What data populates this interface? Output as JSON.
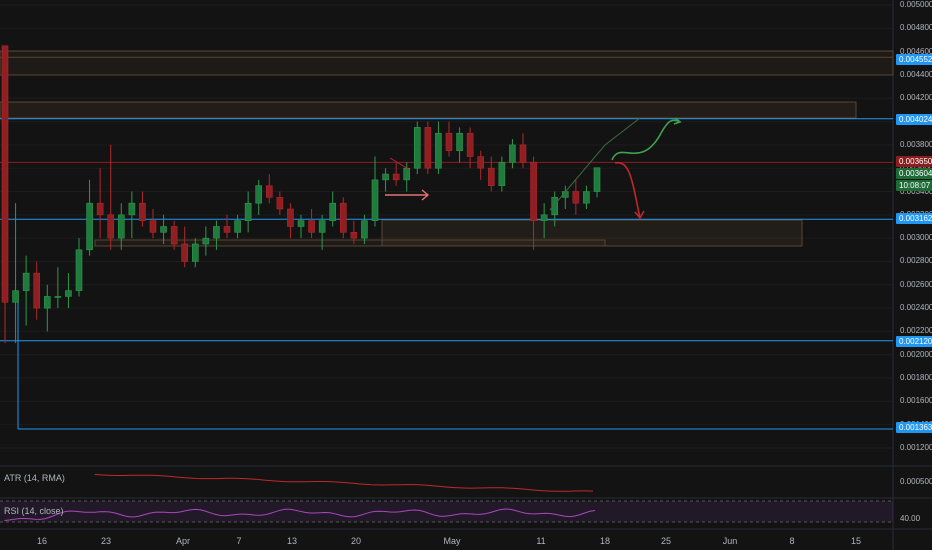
{
  "chart": {
    "symbol_hint": "",
    "price_axis": {
      "ticks": [
        "0.005000",
        "0.004800",
        "0.004600",
        "0.004400",
        "0.004200",
        "0.004000",
        "0.003800",
        "0.003600",
        "0.003400",
        "0.003200",
        "0.003000",
        "0.002800",
        "0.002600",
        "0.002400",
        "0.002200",
        "0.002000",
        "0.001800",
        "0.001600",
        "0.001400",
        "0.001200"
      ]
    },
    "price_tags": [
      {
        "value": "0.004552",
        "color": "#2196f3"
      },
      {
        "value": "0.004024",
        "color": "#2196f3"
      },
      {
        "value": "0.003650",
        "color": "#8a1e1e"
      },
      {
        "value": "0.003604",
        "color": "#1e6a36"
      },
      {
        "value": "10:08:07",
        "color": "#1e6a36"
      },
      {
        "value": "0.003162",
        "color": "#2196f3"
      },
      {
        "value": "0.002120",
        "color": "#2196f3"
      },
      {
        "value": "0.001363",
        "color": "#2196f3"
      }
    ],
    "time_axis": [
      "16",
      "23",
      "Apr",
      "7",
      "13",
      "20",
      "May",
      "11",
      "18",
      "25",
      "Jun",
      "8",
      "15"
    ],
    "indicators": {
      "atr": {
        "label": "ATR (14, RMA)",
        "tick": "0.000500"
      },
      "rsi": {
        "label": "RSI (14, close)",
        "tick": "40.00"
      }
    },
    "colors": {
      "up": "#26a69a",
      "down": "#ef5350",
      "bg": "#131313",
      "grid": "#1e222d",
      "level": "#2196f3"
    }
  },
  "chart_data": {
    "type": "candlestick",
    "x_axis_labels": [
      "16",
      "23",
      "Apr",
      "7",
      "13",
      "20",
      "May",
      "11",
      "18",
      "25",
      "Jun",
      "8",
      "15"
    ],
    "ylim": [
      0.0011,
      0.005
    ],
    "horizontal_levels": [
      0.004552,
      0.004024,
      0.00365,
      0.003162,
      0.00212,
      0.001363
    ],
    "last_price": 0.003604,
    "candles": [
      [
        0.00465,
        0.00465,
        0.0021,
        0.00245
      ],
      [
        0.00245,
        0.0033,
        0.0021,
        0.00255
      ],
      [
        0.00255,
        0.00285,
        0.00225,
        0.0027
      ],
      [
        0.0027,
        0.0028,
        0.0023,
        0.0024
      ],
      [
        0.0024,
        0.0026,
        0.0022,
        0.0025
      ],
      [
        0.0025,
        0.00275,
        0.0024,
        0.0025
      ],
      [
        0.0025,
        0.0027,
        0.0024,
        0.00255
      ],
      [
        0.00255,
        0.003,
        0.0025,
        0.0029
      ],
      [
        0.0029,
        0.0035,
        0.00285,
        0.0033
      ],
      [
        0.0033,
        0.0036,
        0.003,
        0.0032
      ],
      [
        0.0032,
        0.0038,
        0.0029,
        0.003
      ],
      [
        0.003,
        0.0033,
        0.0029,
        0.0032
      ],
      [
        0.0032,
        0.0034,
        0.003,
        0.0033
      ],
      [
        0.0033,
        0.0034,
        0.0031,
        0.00315
      ],
      [
        0.00315,
        0.00325,
        0.003,
        0.00305
      ],
      [
        0.00305,
        0.0032,
        0.00295,
        0.0031
      ],
      [
        0.0031,
        0.00315,
        0.0029,
        0.00295
      ],
      [
        0.00295,
        0.0031,
        0.00275,
        0.0028
      ],
      [
        0.0028,
        0.003,
        0.00275,
        0.00295
      ],
      [
        0.00295,
        0.0031,
        0.00285,
        0.003
      ],
      [
        0.003,
        0.00315,
        0.0029,
        0.0031
      ],
      [
        0.0031,
        0.0032,
        0.003,
        0.00305
      ],
      [
        0.00305,
        0.0032,
        0.003,
        0.00315
      ],
      [
        0.00315,
        0.0034,
        0.00305,
        0.0033
      ],
      [
        0.0033,
        0.0035,
        0.0032,
        0.00345
      ],
      [
        0.00345,
        0.00355,
        0.0033,
        0.00335
      ],
      [
        0.00335,
        0.0034,
        0.0032,
        0.00325
      ],
      [
        0.00325,
        0.0033,
        0.003,
        0.0031
      ],
      [
        0.0031,
        0.0032,
        0.003,
        0.00315
      ],
      [
        0.00315,
        0.00325,
        0.003,
        0.00305
      ],
      [
        0.00305,
        0.0032,
        0.0029,
        0.00315
      ],
      [
        0.00315,
        0.0034,
        0.0031,
        0.0033
      ],
      [
        0.0033,
        0.00335,
        0.003,
        0.00305
      ],
      [
        0.00305,
        0.00315,
        0.00295,
        0.003
      ],
      [
        0.003,
        0.0032,
        0.00295,
        0.00315
      ],
      [
        0.00315,
        0.0037,
        0.0031,
        0.0035
      ],
      [
        0.0035,
        0.0036,
        0.0034,
        0.00355
      ],
      [
        0.00355,
        0.00365,
        0.00345,
        0.0035
      ],
      [
        0.0035,
        0.00365,
        0.0034,
        0.0036
      ],
      [
        0.0036,
        0.004,
        0.00355,
        0.00395
      ],
      [
        0.00395,
        0.004,
        0.00355,
        0.0036
      ],
      [
        0.0036,
        0.004,
        0.00355,
        0.0039
      ],
      [
        0.0039,
        0.004,
        0.0037,
        0.00375
      ],
      [
        0.00375,
        0.00395,
        0.00365,
        0.0039
      ],
      [
        0.0039,
        0.00395,
        0.0036,
        0.0037
      ],
      [
        0.0037,
        0.00375,
        0.0035,
        0.0036
      ],
      [
        0.0036,
        0.0037,
        0.0034,
        0.00345
      ],
      [
        0.00345,
        0.0037,
        0.0034,
        0.00365
      ],
      [
        0.00365,
        0.00385,
        0.0036,
        0.0038
      ],
      [
        0.0038,
        0.0039,
        0.0036,
        0.00365
      ],
      [
        0.00365,
        0.0037,
        0.0029,
        0.00315
      ],
      [
        0.00315,
        0.0033,
        0.003,
        0.0032
      ],
      [
        0.0032,
        0.0034,
        0.0031,
        0.00335
      ],
      [
        0.00335,
        0.00345,
        0.00325,
        0.0034
      ],
      [
        0.0034,
        0.0035,
        0.0032,
        0.0033
      ],
      [
        0.0033,
        0.00345,
        0.00325,
        0.0034
      ],
      [
        0.0034,
        0.0036,
        0.00335,
        0.003604
      ]
    ]
  }
}
